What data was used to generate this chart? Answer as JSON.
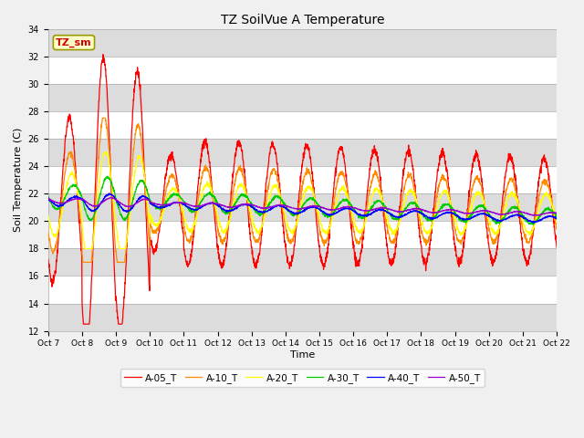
{
  "title": "TZ SoilVue A Temperature",
  "ylabel": "Soil Temperature (C)",
  "xlabel": "Time",
  "annotation": "TZ_sm",
  "ylim": [
    12,
    34
  ],
  "yticks": [
    12,
    14,
    16,
    18,
    20,
    22,
    24,
    26,
    28,
    30,
    32,
    34
  ],
  "xtick_labels": [
    "Oct 7",
    "Oct 8",
    "Oct 9",
    "Oct 10",
    "Oct 11",
    "Oct 12",
    "Oct 13",
    "Oct 14",
    "Oct 15",
    "Oct 16",
    "Oct 17",
    "Oct 18",
    "Oct 19",
    "Oct 20",
    "Oct 21",
    "Oct 22"
  ],
  "series_colors": {
    "A-05_T": "#ff0000",
    "A-10_T": "#ff8c00",
    "A-20_T": "#ffff00",
    "A-30_T": "#00cc00",
    "A-40_T": "#0000ff",
    "A-50_T": "#9900cc"
  },
  "background_color": "#f0f0f0",
  "plot_bg_white": "#ffffff",
  "plot_bg_gray": "#dcdcdc",
  "n_days": 15,
  "points_per_day": 144
}
